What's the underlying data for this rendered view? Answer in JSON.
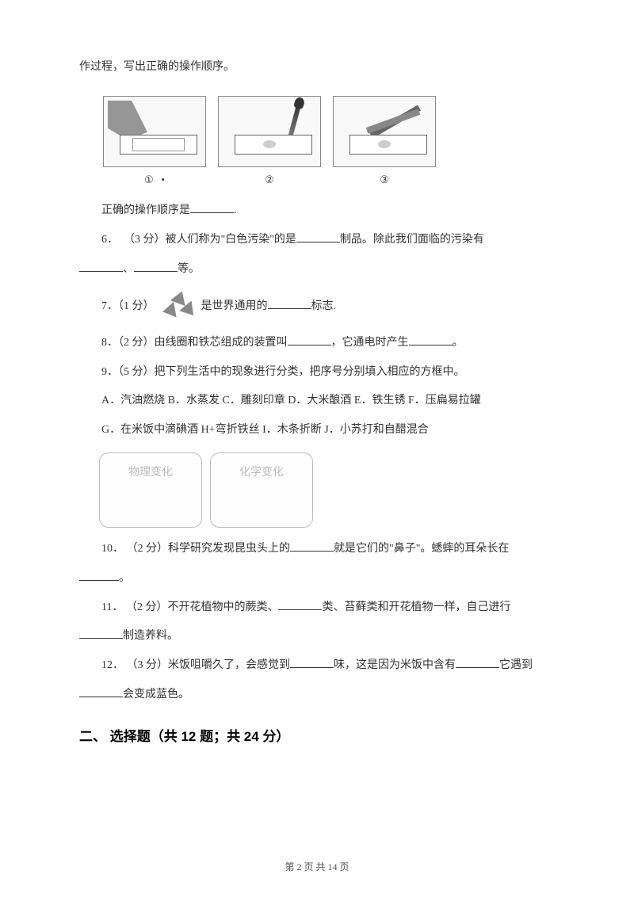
{
  "intro": "作过程，写出正确的操作顺序。",
  "figures": {
    "labels": [
      "①",
      "②",
      "③"
    ],
    "dot": "•"
  },
  "answer_prompt": {
    "prefix": "正确的操作顺序是",
    "suffix": "."
  },
  "q6": {
    "num": "6．",
    "points": "（3 分）",
    "t1": "被人们称为\"白色污染\"的是",
    "t2": "制品。除此我们面临的污染有",
    "sep": "、",
    "t3": "等。"
  },
  "q7": {
    "num": "7．",
    "points": "（1 分）",
    "t1": "是世界通用的",
    "t2": "标志."
  },
  "q8": {
    "num": "8．",
    "points": "（2 分）",
    "t1": "由线圈和铁芯组成的装置叫",
    "t2": "，它通电时产生",
    "t3": "。"
  },
  "q9": {
    "num": "9．",
    "points": "（5 分）",
    "t1": "把下列生活中的现象进行分类，把序号分别填入相应的方框中。",
    "line_a": "A．汽油燃烧 B．水蒸发 C．雕刻印章 D．大米酿酒 E．铁生锈 F．压扁易拉罐",
    "line_b": "G．在米饭中滴碘酒 H+弯折铁丝 I．木条折断 J．小苏打和自醋混合",
    "box1": "物理变化",
    "box2": "化学变化"
  },
  "q10": {
    "num": "10．",
    "points": "（2 分）",
    "t1": "科学研究发现昆虫头上的",
    "t2": "就是它们的\"鼻子\"。蟋蟀的耳朵长在",
    "t3": "。"
  },
  "q11": {
    "num": "11．",
    "points": "（2 分）",
    "t1": "不开花植物中的蕨类、",
    "t2": "类、苔藓类和开花植物一样，自己进行",
    "t3": "制造养料。"
  },
  "q12": {
    "num": "12．",
    "points": "（3 分）",
    "t1": "米饭咀嚼久了，会感觉到",
    "t2": "味，这是因为米饭中含有",
    "t3": "它遇到",
    "t4": "会变成蓝色。"
  },
  "section2": "二、 选择题（共 12 题；共 24 分）",
  "footer": "第 2 页 共 14 页"
}
